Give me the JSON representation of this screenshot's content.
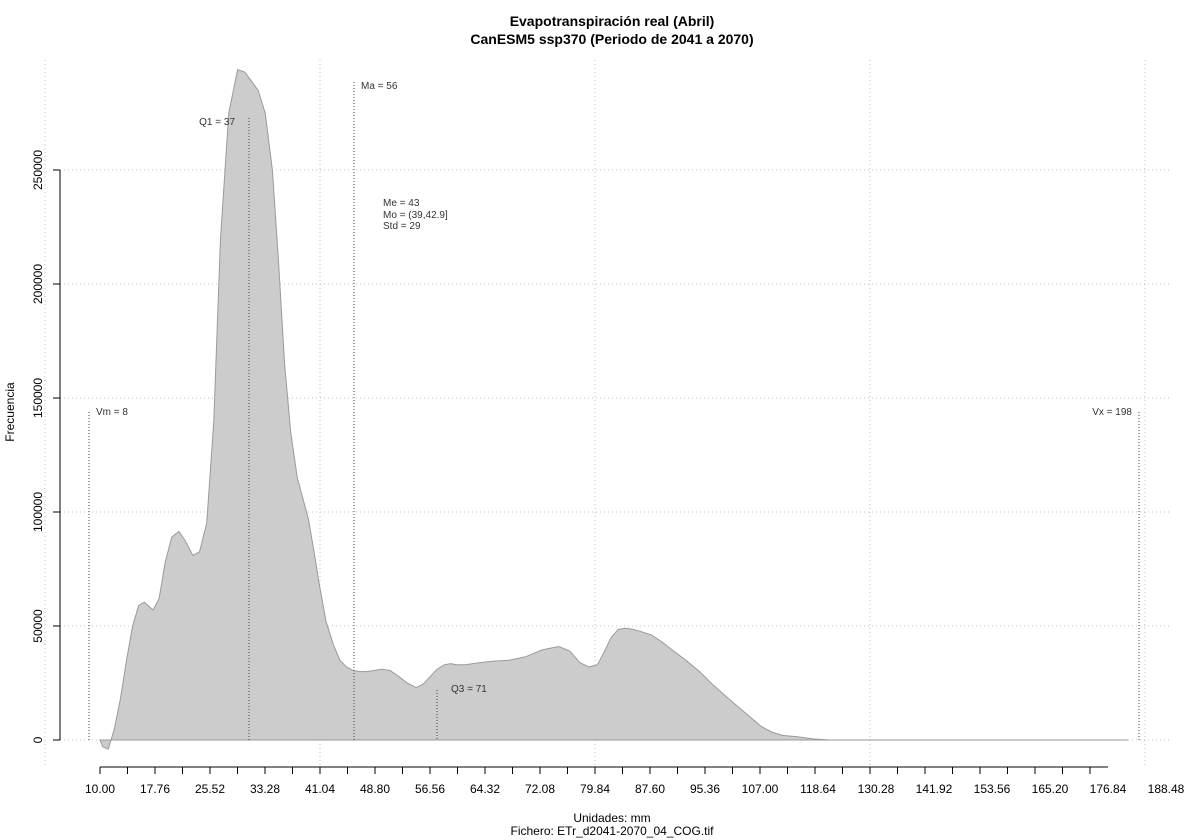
{
  "chart_data": {
    "type": "area",
    "title": "Evapotranspiración real (Abril)",
    "subtitle": "CanESM5 ssp370 (Periodo de 2041 a 2070)",
    "xlabel": "Unidades: mm",
    "ylabel": "Frecuencia",
    "caption": "Fichero: ETr_d2041-2070_04_COG.tif",
    "xlim": [
      10.0,
      198.0
    ],
    "ylim": [
      0,
      290000
    ],
    "x_ticks": [
      "10.00",
      "17.76",
      "25.52",
      "33.28",
      "41.04",
      "48.80",
      "56.56",
      "64.32",
      "72.08",
      "79.84",
      "87.60",
      "95.36",
      "107.00",
      "118.64",
      "130.28",
      "141.92",
      "153.56",
      "165.20",
      "176.84",
      "188.48"
    ],
    "y_ticks": [
      "0",
      "50000",
      "100000",
      "150000",
      "200000",
      "250000"
    ],
    "grid": true,
    "series": [
      {
        "x": [
          10.0,
          10.5,
          11.5,
          12.6,
          13.7,
          14.8,
          15.9,
          17.0,
          18.0,
          19.6,
          20.7,
          21.8,
          23.0,
          24.3,
          25.5,
          26.8,
          28.0,
          29.3,
          30.6,
          31.8,
          33.3,
          34.9,
          36.2,
          37.4,
          38.6,
          39.9,
          41.2,
          42.3,
          43.4,
          44.5,
          45.7,
          46.7,
          47.7,
          48.7,
          49.7,
          50.9,
          52.2,
          53.4,
          54.6,
          55.8,
          57.0,
          58.2,
          59.6,
          61.0,
          62.5,
          64.0,
          65.6,
          67.2,
          68.5,
          69.8,
          71.0,
          72.3,
          73.4,
          74.6,
          76.0,
          77.5,
          79.0,
          81.0,
          84.0,
          87.0,
          90.0,
          93.0,
          95.0,
          96.8,
          98.4,
          100.0,
          101.3,
          102.5,
          103.8,
          105.1,
          106.5,
          108.0,
          109.8,
          111.7,
          113.8,
          116.0,
          118.5,
          121.0,
          123.8,
          126.7,
          129.6,
          131.5,
          133.5,
          136.0,
          139.0,
          142.0,
          145.0,
          150.0,
          160.0,
          170.0,
          180.0,
          190.0,
          196.0
        ],
        "y": [
          0,
          -3000,
          -4000,
          5000,
          18000,
          35000,
          50000,
          59000,
          60500,
          57000,
          62000,
          78000,
          89000,
          91500,
          87000,
          81000,
          82500,
          95000,
          140000,
          220000,
          275000,
          294000,
          293000,
          289000,
          285000,
          275000,
          250000,
          210000,
          165000,
          135000,
          115000,
          106000,
          97000,
          83000,
          68000,
          52000,
          42000,
          35000,
          32000,
          30500,
          30000,
          30000,
          30500,
          31000,
          30500,
          28000,
          25000,
          23000,
          24500,
          28000,
          31000,
          33000,
          33500,
          33000,
          33000,
          33500,
          34000,
          34500,
          35000,
          36500,
          39500,
          41000,
          39000,
          34000,
          32000,
          33000,
          39000,
          45000,
          48500,
          49000,
          48500,
          47500,
          46000,
          43000,
          39000,
          35000,
          30000,
          24000,
          18000,
          12000,
          6000,
          3500,
          2000,
          1500,
          500,
          0,
          0,
          0,
          0,
          0,
          0,
          0,
          0
        ]
      }
    ],
    "annotations": {
      "vm": {
        "text": "Vm = 8",
        "x": 8,
        "y": 143000
      },
      "vx": {
        "text": "Vx = 198",
        "x": 198,
        "y": 143000
      },
      "ma": {
        "text": "Ma = 56",
        "x": 56,
        "y": 287000
      },
      "q1": {
        "text": "Q1 = 37",
        "x": 37,
        "y": 275000
      },
      "q3": {
        "text": "Q3 = 71",
        "x": 71,
        "y": 22000
      },
      "me": "Me = 43",
      "mo": "Mo = (39,42.9]",
      "std": "Std = 29"
    },
    "colors": {
      "fill": "#cccccc",
      "stroke": "#9a9a9a",
      "grid": "#bfbfbf",
      "text": "#000000"
    }
  }
}
